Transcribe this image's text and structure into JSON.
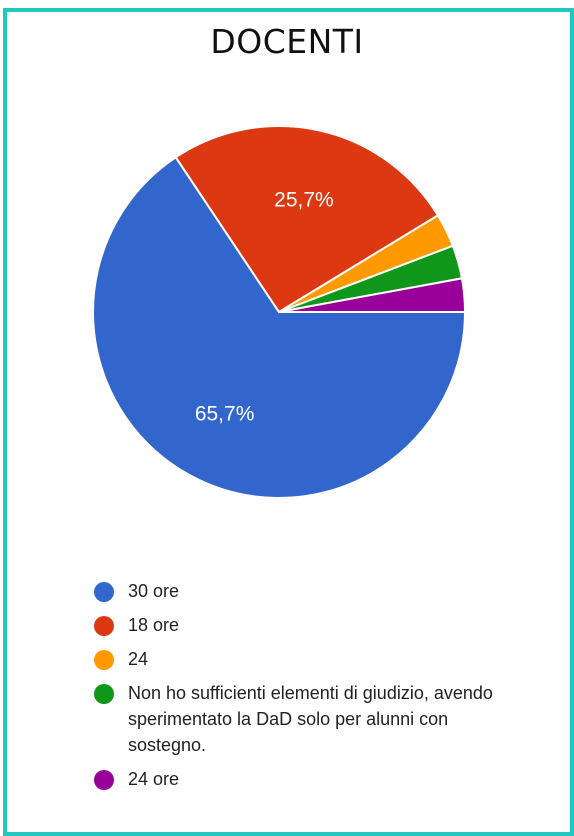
{
  "chart_data": {
    "type": "pie",
    "title": "DOCENTI",
    "categories": [
      "30 ore",
      "18 ore",
      "24",
      "Non ho sufficienti elementi di giudizio, avendo sperimentato la DaD solo per alunni con sostegno.",
      "24 ore"
    ],
    "values": [
      65.7,
      25.7,
      2.9,
      2.9,
      2.9
    ],
    "data_labels": [
      "65,7%",
      "25,7%",
      "",
      "",
      ""
    ],
    "colors": [
      "#3366cc",
      "#dc3912",
      "#ff9900",
      "#109618",
      "#990099"
    ],
    "legend_placement": "bottom-left"
  }
}
